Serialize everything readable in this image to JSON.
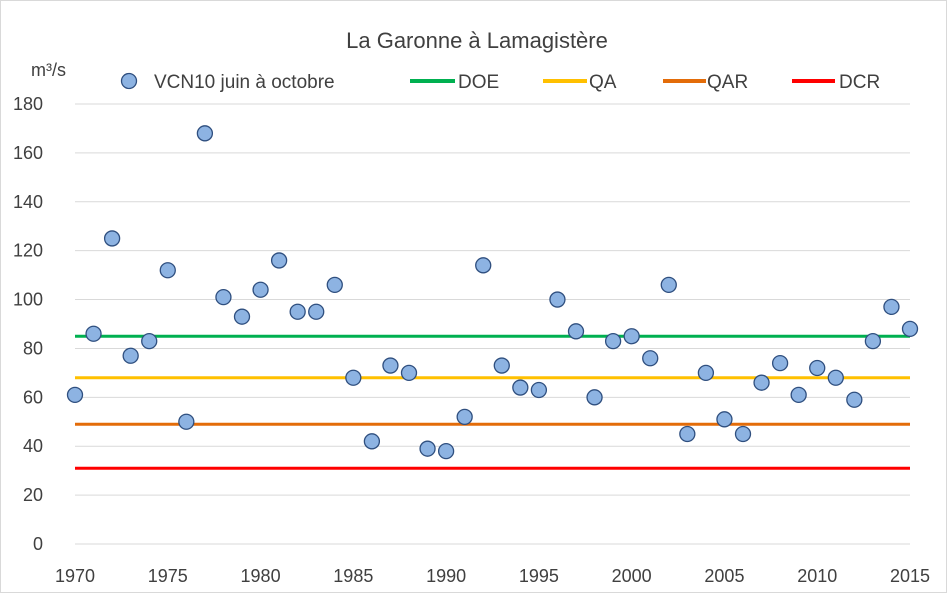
{
  "chart_data": {
    "type": "scatter",
    "title": "La Garonne à Lamagistère",
    "ylabel": "m³/s",
    "xlabel": "",
    "xlim": [
      1970,
      2015
    ],
    "ylim": [
      0,
      180
    ],
    "x_ticks": [
      1970,
      1975,
      1980,
      1985,
      1990,
      1995,
      2000,
      2005,
      2010,
      2015
    ],
    "y_ticks": [
      0,
      20,
      40,
      60,
      80,
      100,
      120,
      140,
      160,
      180
    ],
    "grid": true,
    "legend_placement": "top",
    "points": {
      "name": "VCN10 juin à octobre",
      "color": "#8db3e2",
      "edge_color": "#2f4f7f",
      "x": [
        1970,
        1971,
        1972,
        1973,
        1974,
        1975,
        1976,
        1977,
        1978,
        1979,
        1980,
        1981,
        1982,
        1983,
        1984,
        1985,
        1986,
        1987,
        1988,
        1989,
        1990,
        1991,
        1992,
        1993,
        1994,
        1995,
        1996,
        1997,
        1998,
        1999,
        2000,
        2001,
        2002,
        2003,
        2004,
        2005,
        2006,
        2007,
        2008,
        2009,
        2010,
        2011,
        2012,
        2013,
        2014,
        2015
      ],
      "y": [
        61,
        86,
        125,
        77,
        83,
        112,
        50,
        168,
        101,
        93,
        104,
        116,
        95,
        95,
        106,
        68,
        42,
        73,
        70,
        39,
        38,
        52,
        114,
        73,
        64,
        63,
        100,
        87,
        60,
        83,
        85,
        76,
        106,
        45,
        70,
        51,
        45,
        66,
        74,
        61,
        72,
        68,
        59,
        83,
        97,
        88
      ]
    },
    "lines": [
      {
        "name": "DOE",
        "value": 85,
        "color": "#00b050"
      },
      {
        "name": "QA",
        "value": 68,
        "color": "#ffc000"
      },
      {
        "name": "QAR",
        "value": 49,
        "color": "#e36c09"
      },
      {
        "name": "DCR",
        "value": 31,
        "color": "#ff0000"
      }
    ]
  }
}
